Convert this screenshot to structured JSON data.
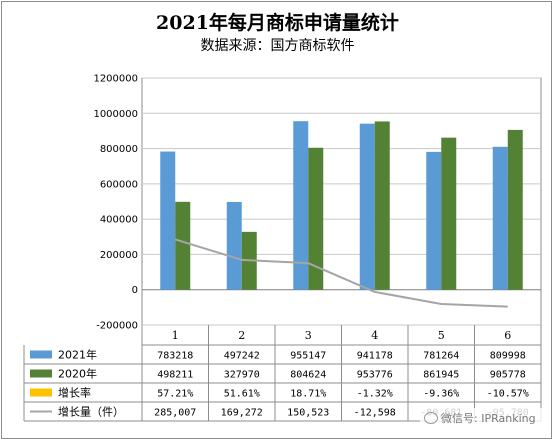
{
  "chart_data": {
    "type": "bar",
    "title": "2021年每月商标申请量统计",
    "subtitle": "数据来源：国方商标软件",
    "categories": [
      "1",
      "2",
      "3",
      "4",
      "5",
      "6"
    ],
    "y_ticks": [
      "1200000",
      "1000000",
      "800000",
      "600000",
      "400000",
      "200000",
      "0",
      "-200000"
    ],
    "ylim": [
      -200000,
      1200000
    ],
    "series": [
      {
        "name": "2021年",
        "kind": "bar",
        "color": "#5b9bd5",
        "values": [
          783218,
          497242,
          955147,
          941178,
          781264,
          809998
        ],
        "labels": [
          "783218",
          "497242",
          "955147",
          "941178",
          "781264",
          "809998"
        ]
      },
      {
        "name": "2020年",
        "kind": "bar",
        "color": "#548235",
        "values": [
          498211,
          327970,
          804624,
          953776,
          861945,
          905778
        ],
        "labels": [
          "498211",
          "327970",
          "804624",
          "953776",
          "861945",
          "905778"
        ]
      },
      {
        "name": "增长率",
        "kind": "line",
        "color": "#ffc000",
        "values": [
          57.21,
          51.61,
          18.71,
          -1.32,
          -9.36,
          -10.57
        ],
        "labels": [
          "57.21%",
          "51.61%",
          "18.71%",
          "-1.32%",
          "-9.36%",
          "-10.57%"
        ]
      },
      {
        "name": "增长量（件）",
        "kind": "line",
        "color": "#a5a5a5",
        "values": [
          285007,
          169272,
          150523,
          -12598,
          -80681,
          -95780
        ],
        "labels": [
          "285,007",
          "169,272",
          "150,523",
          "-12,598",
          "-80,681",
          "-95,780"
        ]
      }
    ],
    "grid": true,
    "legend": "data-table"
  },
  "watermark": {
    "text": "微信号: IPRanking",
    "icon": "wechat-icon"
  }
}
